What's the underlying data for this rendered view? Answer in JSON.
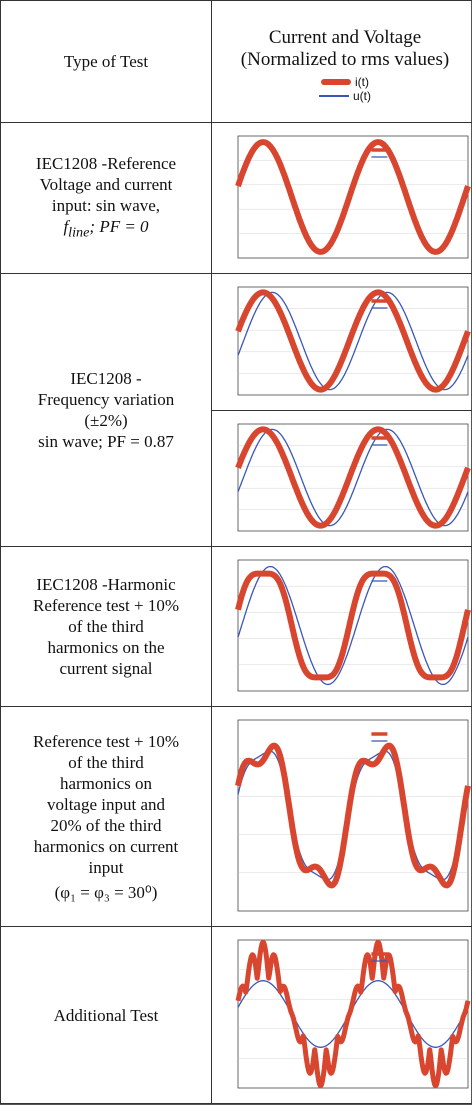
{
  "header": {
    "left": "Type of Test",
    "right_line1": "Current and Voltage",
    "right_line2": "(Normalized to rms values)",
    "legend": [
      {
        "label": "i(t)",
        "color": "#d9462f"
      },
      {
        "label": "u(t)",
        "color": "#3a57b8"
      }
    ]
  },
  "rows": [
    {
      "lines": [
        "IEC1208 -Reference",
        "Voltage and current",
        "input: sin wave,"
      ],
      "extra": "f",
      "extra_sub": "line",
      "extra_tail": "; PF = 0"
    },
    {
      "lines": [
        "IEC1208 -",
        "Frequency variation",
        "(±2%)",
        "sin wave; PF = 0.87"
      ]
    },
    {
      "lines": [
        "IEC1208 -Harmonic",
        "Reference test + 10%",
        "of the third",
        "harmonics on the",
        "current signal"
      ]
    },
    {
      "lines": [
        "Reference test + 10%",
        "of the third",
        "harmonics on",
        "voltage input and",
        "20% of the third",
        "harmonics on current",
        "input",
        "(φ₁ = φ₃ = 30⁰)"
      ]
    },
    {
      "lines": [
        "Additional Test"
      ]
    }
  ],
  "colors": {
    "current": "#d9462f",
    "voltage": "#3a57b8",
    "axes": "#444444",
    "grid": "#cccccc"
  }
}
